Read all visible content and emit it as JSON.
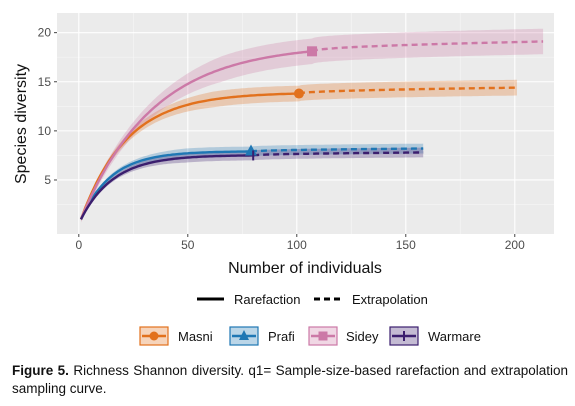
{
  "chart_data": {
    "type": "line",
    "xlabel": "Number of individuals",
    "ylabel": "Species diversity",
    "xlim": [
      -10,
      218
    ],
    "ylim": [
      -0.5,
      22
    ],
    "x_ticks": [
      0,
      50,
      100,
      150,
      200
    ],
    "y_ticks": [
      5,
      10,
      15,
      20
    ],
    "grid": true,
    "line_type_legend": [
      "Rarefaction",
      "Extrapolation"
    ],
    "series": [
      {
        "name": "Masni",
        "color": "#E2711D",
        "marker": "circle",
        "observed": {
          "x": 101,
          "y": 13.8
        },
        "asymptote": 15.2,
        "rate": 21,
        "x_end": 201,
        "band": 0.8,
        "rarefaction": {
          "x": [
            1,
            5,
            10,
            20,
            30,
            40,
            50,
            60,
            70,
            80,
            90,
            101
          ],
          "y": [
            1,
            4.2,
            6.6,
            9.1,
            10.6,
            11.5,
            12.2,
            12.7,
            13.1,
            13.4,
            13.6,
            13.8
          ]
        },
        "extrapolation": {
          "x": [
            101,
            120,
            140,
            160,
            180,
            201
          ],
          "y": [
            13.8,
            14.0,
            14.1,
            14.2,
            14.3,
            14.4
          ]
        }
      },
      {
        "name": "Prafi",
        "color": "#1F77B4",
        "marker": "triangle",
        "observed": {
          "x": 79,
          "y": 7.9
        },
        "asymptote": 8.5,
        "rate": 14,
        "x_end": 158,
        "band": 0.5,
        "rarefaction": {
          "x": [
            1,
            5,
            10,
            20,
            30,
            40,
            50,
            60,
            70,
            79
          ],
          "y": [
            1,
            3.5,
            5.0,
            6.3,
            6.9,
            7.3,
            7.5,
            7.7,
            7.8,
            7.9
          ]
        },
        "extrapolation": {
          "x": [
            79,
            100,
            120,
            140,
            158
          ],
          "y": [
            7.9,
            8.0,
            8.1,
            8.2,
            8.2
          ]
        }
      },
      {
        "name": "Sidey",
        "color": "#CC79A7",
        "marker": "square",
        "observed": {
          "x": 107,
          "y": 18.1
        },
        "asymptote": 21.5,
        "rate": 33,
        "x_end": 213,
        "band": 1.3,
        "rarefaction": {
          "x": [
            1,
            5,
            10,
            20,
            30,
            40,
            50,
            60,
            70,
            80,
            90,
            100,
            107
          ],
          "y": [
            1,
            4.6,
            7.6,
            11.0,
            13.1,
            14.5,
            15.5,
            16.3,
            16.9,
            17.4,
            17.7,
            18.0,
            18.1
          ]
        },
        "extrapolation": {
          "x": [
            107,
            130,
            150,
            170,
            190,
            213
          ],
          "y": [
            18.1,
            18.4,
            18.6,
            18.8,
            18.9,
            19.1
          ]
        }
      },
      {
        "name": "Warmare",
        "color": "#3B1E6E",
        "marker": "none",
        "observed": {
          "x": 80,
          "y": 7.5
        },
        "asymptote": 8.2,
        "rate": 15,
        "x_end": 158,
        "band": 0.5,
        "rarefaction": {
          "x": [
            1,
            5,
            10,
            20,
            30,
            40,
            50,
            60,
            70,
            80
          ],
          "y": [
            1,
            3.2,
            4.6,
            5.9,
            6.5,
            6.9,
            7.1,
            7.3,
            7.4,
            7.5
          ]
        },
        "extrapolation": {
          "x": [
            80,
            100,
            120,
            140,
            158
          ],
          "y": [
            7.5,
            7.6,
            7.7,
            7.7,
            7.8
          ]
        }
      }
    ]
  },
  "caption": {
    "label": "Figure 5.",
    "text": "Richness Shannon diversity. q1= Sample-size-based rarefaction and extrapolation sampling curve."
  }
}
